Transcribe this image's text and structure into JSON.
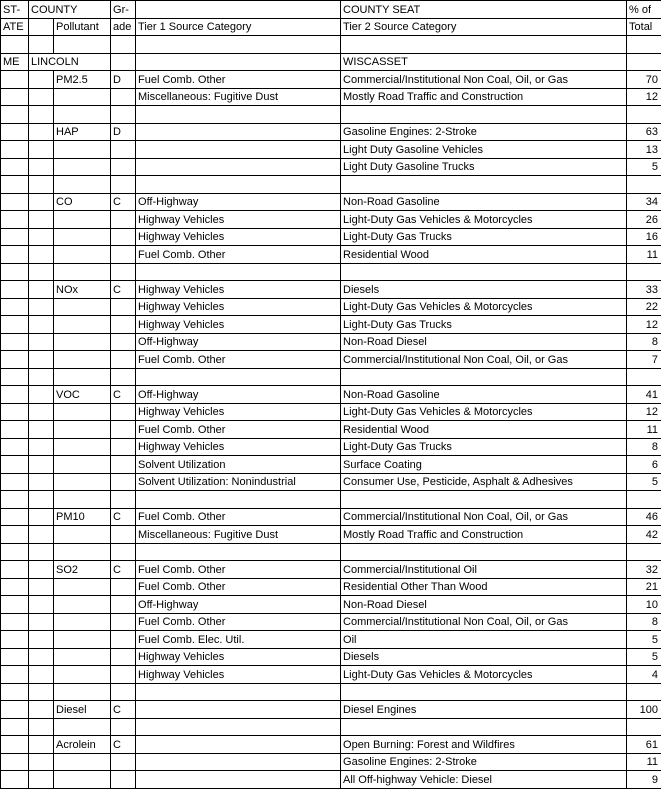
{
  "header": {
    "state_line1": "ST-",
    "state_line2": "ATE",
    "county": "COUNTY",
    "pollutant": "Pollutant",
    "grade_line1": "Gr-",
    "grade_line2": "ade",
    "tier1": "Tier 1 Source Category",
    "county_seat": "COUNTY SEAT",
    "tier2": "Tier 2 Source Category",
    "pct_line1": "% of",
    "pct_line2": "Total"
  },
  "location": {
    "state": "ME",
    "county": "LINCOLN",
    "county_seat": "WISCASSET"
  },
  "colors": {
    "background": "#ffffff",
    "border": "#000000",
    "text": "#000000"
  },
  "sections": [
    {
      "pollutant": "PM2.5",
      "grade": "D",
      "rows": [
        {
          "tier1": "Fuel Comb. Other",
          "tier2": "Commercial/Institutional Non Coal, Oil, or Gas",
          "pct": 70
        },
        {
          "tier1": "Miscellaneous: Fugitive Dust",
          "tier2": "Mostly Road Traffic and Construction",
          "pct": 12
        }
      ]
    },
    {
      "pollutant": "HAP",
      "grade": "D",
      "rows": [
        {
          "tier1": "",
          "tier2": "Gasoline Engines: 2-Stroke",
          "pct": 63
        },
        {
          "tier1": "",
          "tier2": "Light Duty Gasoline Vehicles",
          "pct": 13
        },
        {
          "tier1": "",
          "tier2": "Light Duty Gasoline Trucks",
          "pct": 5
        }
      ]
    },
    {
      "pollutant": "CO",
      "grade": "C",
      "rows": [
        {
          "tier1": "Off-Highway",
          "tier2": "Non-Road Gasoline",
          "pct": 34
        },
        {
          "tier1": "Highway Vehicles",
          "tier2": "Light-Duty Gas Vehicles & Motorcycles",
          "pct": 26
        },
        {
          "tier1": "Highway Vehicles",
          "tier2": "Light-Duty Gas Trucks",
          "pct": 16
        },
        {
          "tier1": "Fuel Comb. Other",
          "tier2": "Residential Wood",
          "pct": 11
        }
      ]
    },
    {
      "pollutant": "NOx",
      "grade": "C",
      "rows": [
        {
          "tier1": "Highway Vehicles",
          "tier2": "Diesels",
          "pct": 33
        },
        {
          "tier1": "Highway Vehicles",
          "tier2": "Light-Duty Gas Vehicles & Motorcycles",
          "pct": 22
        },
        {
          "tier1": "Highway Vehicles",
          "tier2": "Light-Duty Gas Trucks",
          "pct": 12
        },
        {
          "tier1": "Off-Highway",
          "tier2": "Non-Road Diesel",
          "pct": 8
        },
        {
          "tier1": "Fuel Comb. Other",
          "tier2": "Commercial/Institutional Non Coal, Oil, or Gas",
          "pct": 7
        }
      ]
    },
    {
      "pollutant": "VOC",
      "grade": "C",
      "rows": [
        {
          "tier1": "Off-Highway",
          "tier2": "Non-Road Gasoline",
          "pct": 41
        },
        {
          "tier1": "Highway Vehicles",
          "tier2": "Light-Duty Gas Vehicles & Motorcycles",
          "pct": 12
        },
        {
          "tier1": "Fuel Comb. Other",
          "tier2": "Residential Wood",
          "pct": 11
        },
        {
          "tier1": "Highway Vehicles",
          "tier2": "Light-Duty Gas Trucks",
          "pct": 8
        },
        {
          "tier1": "Solvent Utilization",
          "tier2": "Surface Coating",
          "pct": 6
        },
        {
          "tier1": "Solvent Utilization: Nonindustrial",
          "tier2": "Consumer Use, Pesticide, Asphalt & Adhesives",
          "pct": 5
        }
      ]
    },
    {
      "pollutant": "PM10",
      "grade": "C",
      "rows": [
        {
          "tier1": "Fuel Comb. Other",
          "tier2": "Commercial/Institutional Non Coal, Oil, or Gas",
          "pct": 46
        },
        {
          "tier1": "Miscellaneous: Fugitive Dust",
          "tier2": "Mostly Road Traffic and Construction",
          "pct": 42
        }
      ]
    },
    {
      "pollutant": "SO2",
      "grade": "C",
      "rows": [
        {
          "tier1": "Fuel Comb. Other",
          "tier2": "Commercial/Institutional Oil",
          "pct": 32
        },
        {
          "tier1": "Fuel Comb. Other",
          "tier2": "Residential Other Than Wood",
          "pct": 21
        },
        {
          "tier1": "Off-Highway",
          "tier2": "Non-Road Diesel",
          "pct": 10
        },
        {
          "tier1": "Fuel Comb. Other",
          "tier2": "Commercial/Institutional Non Coal, Oil, or Gas",
          "pct": 8
        },
        {
          "tier1": "Fuel Comb. Elec. Util.",
          "tier2": "Oil",
          "pct": 5
        },
        {
          "tier1": "Highway Vehicles",
          "tier2": "Diesels",
          "pct": 5
        },
        {
          "tier1": "Highway Vehicles",
          "tier2": "Light-Duty Gas Vehicles & Motorcycles",
          "pct": 4
        }
      ]
    },
    {
      "pollutant": "Diesel",
      "grade": "C",
      "rows": [
        {
          "tier1": "",
          "tier2": "Diesel Engines",
          "pct": 100
        }
      ]
    },
    {
      "pollutant": "Acrolein",
      "grade": "C",
      "rows": [
        {
          "tier1": "",
          "tier2": "Open Burning:  Forest and Wildfires",
          "pct": 61
        },
        {
          "tier1": "",
          "tier2": "Gasoline Engines: 2-Stroke",
          "pct": 11
        },
        {
          "tier1": "",
          "tier2": "All Off-highway Vehicle: Diesel",
          "pct": 9
        }
      ]
    }
  ]
}
